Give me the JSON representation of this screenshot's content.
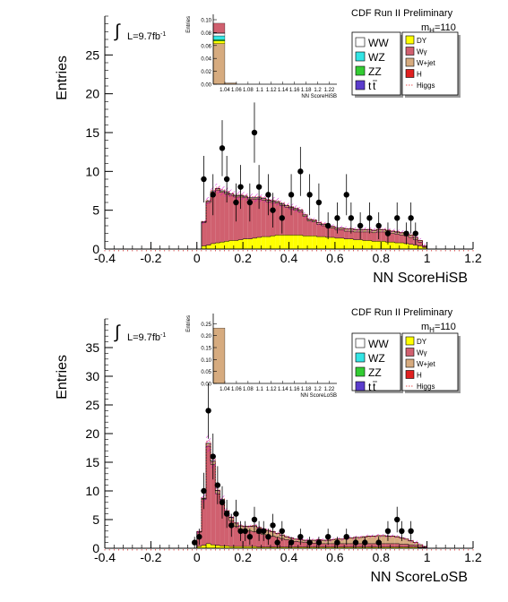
{
  "colors": {
    "WW": "#ffffff",
    "WZ": "#33e5e5",
    "ZZ": "#33cc33",
    "tt": "#5b3ccc",
    "DY": "#ffff00",
    "Wgamma": "#d0606f",
    "Wjet": "#d6ab7f",
    "H": "#e02020",
    "Higgs_line": "#e02020",
    "uncert": "#cc00cc"
  },
  "chart_data": [
    {
      "type": "bar",
      "title": "CDF Run II Preliminary",
      "xlabel": "NN ScoreHiSB",
      "ylabel": "Entries",
      "lumi_label": "L=9.7fb",
      "lumi_sup": "-1",
      "mass_label_main": "m",
      "mass_label_sub": "H",
      "mass_label_value": "=110",
      "xlim": [
        -0.4,
        1.2
      ],
      "ylim": [
        0,
        30
      ],
      "xticks": [
        "-0.4",
        "-0.2",
        "0",
        "0.2",
        "0.4",
        "0.6",
        "0.8",
        "1",
        "1.2"
      ],
      "yticks": [
        "0",
        "5",
        "10",
        "15",
        "20",
        "25"
      ],
      "legend": [
        "WW",
        "WZ",
        "ZZ",
        "tt",
        "DY",
        "Wγ",
        "W+jet",
        "H",
        "Higgs"
      ],
      "bin_width": 0.02,
      "x": [
        0.03,
        0.05,
        0.07,
        0.09,
        0.11,
        0.13,
        0.15,
        0.17,
        0.19,
        0.21,
        0.23,
        0.25,
        0.27,
        0.29,
        0.31,
        0.33,
        0.35,
        0.37,
        0.39,
        0.41,
        0.43,
        0.45,
        0.47,
        0.49,
        0.51,
        0.53,
        0.55,
        0.57,
        0.59,
        0.61,
        0.63,
        0.65,
        0.67,
        0.69,
        0.71,
        0.73,
        0.75,
        0.77,
        0.79,
        0.81,
        0.83,
        0.85,
        0.87,
        0.89,
        0.91,
        0.93,
        0.95,
        0.97,
        0.99
      ],
      "series": [
        {
          "name": "DY",
          "values": [
            0.4,
            0.5,
            0.7,
            0.8,
            0.9,
            1.0,
            1.1,
            1.1,
            1.2,
            1.3,
            1.3,
            1.4,
            1.5,
            1.6,
            1.6,
            1.7,
            1.8,
            1.8,
            1.8,
            1.8,
            1.8,
            1.8,
            1.7,
            1.7,
            1.7,
            1.6,
            1.6,
            1.5,
            1.5,
            1.4,
            1.4,
            1.3,
            1.3,
            1.2,
            1.2,
            1.1,
            1.1,
            1.0,
            1.0,
            1.0,
            0.9,
            0.9,
            0.8,
            0.8,
            0.7,
            0.6,
            0.5,
            0.4,
            0.2
          ]
        },
        {
          "name": "Wγ",
          "values": [
            3.0,
            5.5,
            6.5,
            6.8,
            6.4,
            6.1,
            5.8,
            5.6,
            5.5,
            5.3,
            5.1,
            5.0,
            4.9,
            4.7,
            4.5,
            4.3,
            4.1,
            3.8,
            3.6,
            3.4,
            3.2,
            3.0,
            2.5,
            1.9,
            1.8,
            1.6,
            1.4,
            1.3,
            1.2,
            1.1,
            1.1,
            1.0,
            1.0,
            1.0,
            1.0,
            1.1,
            1.1,
            1.1,
            1.2,
            1.2,
            1.2,
            1.1,
            1.1,
            1.0,
            1.0,
            0.9,
            0.7,
            0.5,
            0.1
          ]
        },
        {
          "name": "W+jet",
          "values": [
            0.1,
            0.2,
            0.2,
            0.2,
            0.2,
            0.2,
            0.2,
            0.2,
            0.2,
            0.2,
            0.2,
            0.2,
            0.2,
            0.2,
            0.2,
            0.2,
            0.2,
            0.2,
            0.2,
            0.2,
            0.2,
            0.2,
            0.2,
            0.2,
            0.2,
            0.2,
            0.2,
            0.2,
            0.2,
            0.2,
            0.2,
            0.3,
            0.3,
            0.3,
            0.3,
            0.3,
            0.3,
            0.3,
            0.3,
            0.3,
            0.3,
            0.3,
            0.3,
            0.3,
            0.3,
            0.3,
            0.3,
            0.2,
            0.1
          ]
        }
      ],
      "data_points": [
        {
          "x": 0.03,
          "y": 9
        },
        {
          "x": 0.07,
          "y": 7
        },
        {
          "x": 0.11,
          "y": 13
        },
        {
          "x": 0.13,
          "y": 9
        },
        {
          "x": 0.17,
          "y": 6
        },
        {
          "x": 0.19,
          "y": 8
        },
        {
          "x": 0.23,
          "y": 6
        },
        {
          "x": 0.25,
          "y": 15
        },
        {
          "x": 0.27,
          "y": 8
        },
        {
          "x": 0.31,
          "y": 7
        },
        {
          "x": 0.33,
          "y": 5
        },
        {
          "x": 0.37,
          "y": 4
        },
        {
          "x": 0.41,
          "y": 7
        },
        {
          "x": 0.45,
          "y": 10
        },
        {
          "x": 0.49,
          "y": 7
        },
        {
          "x": 0.53,
          "y": 6
        },
        {
          "x": 0.57,
          "y": 3
        },
        {
          "x": 0.61,
          "y": 4
        },
        {
          "x": 0.65,
          "y": 7
        },
        {
          "x": 0.67,
          "y": 4
        },
        {
          "x": 0.71,
          "y": 3
        },
        {
          "x": 0.75,
          "y": 4
        },
        {
          "x": 0.79,
          "y": 3
        },
        {
          "x": 0.83,
          "y": 2
        },
        {
          "x": 0.87,
          "y": 4
        },
        {
          "x": 0.91,
          "y": 2
        },
        {
          "x": 0.93,
          "y": 4
        },
        {
          "x": 0.95,
          "y": 2
        }
      ],
      "inset": {
        "ylabel": "Entries",
        "xlabel": "NN ScoreHiSB",
        "ylim": [
          0,
          0.1
        ],
        "yticks": [
          "0.00",
          "0.02",
          "0.04",
          "0.06",
          "0.08",
          "0.10"
        ],
        "xticks": [
          "1.04",
          "1.06",
          "1.08",
          "1.1",
          "1.12",
          "1.14",
          "1.16",
          "1.18",
          "1.2",
          "1.22"
        ],
        "bars": [
          {
            "x0": 1.02,
            "x1": 1.04,
            "layers": [
              [
                "Wjet",
                0.063
              ],
              [
                "DY",
                0.004
              ],
              [
                "ZZ",
                0.002
              ],
              [
                "WZ",
                0.006
              ],
              [
                "WW",
                0.004
              ],
              [
                "tt",
                0.0005
              ],
              [
                "Wgamma",
                0.015
              ]
            ]
          },
          {
            "x0": 1.04,
            "x1": 1.06,
            "layers": [
              [
                "Wjet",
                0.002
              ]
            ]
          }
        ]
      }
    },
    {
      "type": "bar",
      "title": "CDF Run II Preliminary",
      "xlabel": "NN ScoreLoSB",
      "ylabel": "Entries",
      "lumi_label": "L=9.7fb",
      "lumi_sup": "-1",
      "mass_label_main": "m",
      "mass_label_sub": "H",
      "mass_label_value": "=110",
      "xlim": [
        -0.4,
        1.2
      ],
      "ylim": [
        0,
        40
      ],
      "xticks": [
        "-0.4",
        "-0.2",
        "0",
        "0.2",
        "0.4",
        "0.6",
        "0.8",
        "1",
        "1.2"
      ],
      "yticks": [
        "0",
        "5",
        "10",
        "15",
        "20",
        "25",
        "30",
        "35"
      ],
      "legend": [
        "WW",
        "WZ",
        "ZZ",
        "tt",
        "DY",
        "Wγ",
        "W+jet",
        "H",
        "Higgs"
      ],
      "bin_width": 0.02,
      "x": [
        0.01,
        0.03,
        0.05,
        0.07,
        0.09,
        0.11,
        0.13,
        0.15,
        0.17,
        0.19,
        0.21,
        0.23,
        0.25,
        0.27,
        0.29,
        0.31,
        0.33,
        0.35,
        0.37,
        0.39,
        0.41,
        0.43,
        0.45,
        0.47,
        0.49,
        0.51,
        0.53,
        0.55,
        0.57,
        0.59,
        0.61,
        0.63,
        0.65,
        0.67,
        0.69,
        0.71,
        0.73,
        0.75,
        0.77,
        0.79,
        0.81,
        0.83,
        0.85,
        0.87,
        0.89,
        0.91,
        0.93,
        0.95,
        0.97,
        0.99
      ],
      "series": [
        {
          "name": "DY",
          "values": [
            0.3,
            0.5,
            0.8,
            0.6,
            0.5,
            0.4,
            0.4,
            0.3,
            0.3,
            0.3,
            0.3,
            0.3,
            0.3,
            0.2,
            0.2,
            0.2,
            0.2,
            0.2,
            0.2,
            0.2,
            0.2,
            0.2,
            0.2,
            0.2,
            0.2,
            0.2,
            0.2,
            0.2,
            0.2,
            0.2,
            0.2,
            0.2,
            0.2,
            0.2,
            0.2,
            0.2,
            0.2,
            0.2,
            0.2,
            0.2,
            0.2,
            0.2,
            0.2,
            0.2,
            0.2,
            0.2,
            0.2,
            0.2,
            0.1,
            0.1
          ]
        },
        {
          "name": "Wγ",
          "values": [
            2.5,
            8.0,
            17.0,
            14.0,
            9.0,
            7.5,
            5.5,
            4.5,
            3.5,
            3.0,
            2.8,
            2.7,
            2.6,
            2.4,
            2.2,
            2.0,
            1.9,
            1.7,
            1.5,
            1.3,
            1.2,
            1.0,
            0.9,
            0.8,
            0.7,
            0.7,
            0.7,
            0.6,
            0.6,
            0.6,
            0.6,
            0.6,
            0.6,
            0.6,
            0.6,
            0.6,
            0.6,
            0.6,
            0.6,
            0.6,
            0.6,
            0.6,
            0.6,
            0.6,
            0.5,
            0.5,
            0.4,
            0.3,
            0.2,
            0.1
          ]
        },
        {
          "name": "W+jet",
          "values": [
            0.1,
            0.2,
            0.5,
            0.6,
            0.6,
            0.6,
            0.6,
            0.6,
            0.6,
            0.6,
            0.7,
            0.8,
            1.0,
            1.0,
            0.9,
            0.9,
            0.8,
            0.7,
            0.6,
            0.5,
            0.4,
            0.4,
            0.4,
            0.4,
            0.5,
            0.5,
            0.6,
            0.6,
            0.6,
            0.7,
            0.8,
            0.8,
            0.9,
            1.0,
            1.1,
            1.1,
            1.2,
            1.3,
            1.3,
            1.4,
            1.4,
            1.3,
            1.3,
            1.2,
            1.1,
            0.9,
            0.7,
            0.5,
            0.3,
            0.1
          ]
        }
      ],
      "data_points": [
        {
          "x": -0.01,
          "y": 1
        },
        {
          "x": 0.01,
          "y": 2
        },
        {
          "x": 0.03,
          "y": 10
        },
        {
          "x": 0.05,
          "y": 24
        },
        {
          "x": 0.07,
          "y": 16
        },
        {
          "x": 0.09,
          "y": 11
        },
        {
          "x": 0.11,
          "y": 8
        },
        {
          "x": 0.13,
          "y": 6
        },
        {
          "x": 0.15,
          "y": 4
        },
        {
          "x": 0.17,
          "y": 6
        },
        {
          "x": 0.19,
          "y": 3
        },
        {
          "x": 0.21,
          "y": 3
        },
        {
          "x": 0.23,
          "y": 2
        },
        {
          "x": 0.25,
          "y": 5
        },
        {
          "x": 0.27,
          "y": 3
        },
        {
          "x": 0.29,
          "y": 3
        },
        {
          "x": 0.31,
          "y": 2
        },
        {
          "x": 0.33,
          "y": 4
        },
        {
          "x": 0.35,
          "y": 1
        },
        {
          "x": 0.37,
          "y": 3
        },
        {
          "x": 0.41,
          "y": 1
        },
        {
          "x": 0.45,
          "y": 2
        },
        {
          "x": 0.49,
          "y": 1
        },
        {
          "x": 0.53,
          "y": 1
        },
        {
          "x": 0.57,
          "y": 2
        },
        {
          "x": 0.61,
          "y": 1
        },
        {
          "x": 0.65,
          "y": 2
        },
        {
          "x": 0.69,
          "y": 1
        },
        {
          "x": 0.73,
          "y": 1
        },
        {
          "x": 0.79,
          "y": 1
        },
        {
          "x": 0.83,
          "y": 3
        },
        {
          "x": 0.87,
          "y": 5
        },
        {
          "x": 0.89,
          "y": 3
        },
        {
          "x": 0.93,
          "y": 3
        }
      ],
      "inset": {
        "ylabel": "Entries",
        "xlabel": "NN ScoreLoSB",
        "ylim": [
          0,
          0.27
        ],
        "yticks": [
          "0.00",
          "0.05",
          "0.10",
          "0.15",
          "0.20",
          "0.25"
        ],
        "xticks": [
          "1.04",
          "1.06",
          "1.08",
          "1.1",
          "1.12",
          "1.14",
          "1.16",
          "1.18",
          "1.2",
          "1.22"
        ],
        "bars": [
          {
            "x0": 1.02,
            "x1": 1.04,
            "layers": [
              [
                "Wjet",
                0.232
              ]
            ]
          }
        ]
      }
    }
  ]
}
